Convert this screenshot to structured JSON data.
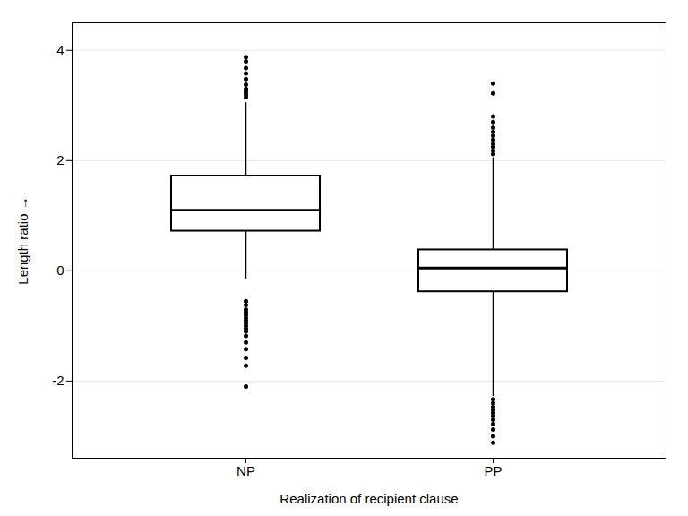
{
  "chart_data": {
    "type": "box",
    "xlabel": "Realization of recipient clause",
    "ylabel": "Length ratio",
    "categories": [
      "NP",
      "PP"
    ],
    "q1": [
      0.72,
      -0.38
    ],
    "median": [
      1.1,
      0.05
    ],
    "q3": [
      1.72,
      0.38
    ],
    "whisker_low": [
      -0.15,
      -2.28
    ],
    "whisker_high": [
      3.05,
      2.05
    ],
    "outliers_low": [
      [
        -0.55,
        -0.62,
        -0.7,
        -0.75,
        -0.8,
        -0.85,
        -0.9,
        -0.95,
        -1.0,
        -1.05,
        -1.1,
        -1.18,
        -1.3,
        -1.42,
        -1.58,
        -1.72,
        -2.1
      ],
      [
        -2.33,
        -2.4,
        -2.47,
        -2.53,
        -2.58,
        -2.63,
        -2.7,
        -2.78,
        -2.88,
        -3.0,
        -3.12
      ]
    ],
    "outliers_high": [
      [
        3.15,
        3.2,
        3.25,
        3.3,
        3.38,
        3.48,
        3.58,
        3.68,
        3.8,
        3.88
      ],
      [
        2.12,
        2.18,
        2.25,
        2.3,
        2.38,
        2.45,
        2.52,
        2.6,
        2.7,
        2.8,
        3.22,
        3.4
      ]
    ],
    "ylim": [
      -3.4,
      4.5
    ],
    "yticks": [
      -2,
      0,
      2,
      4
    ],
    "grid": true,
    "color": "#000000"
  }
}
